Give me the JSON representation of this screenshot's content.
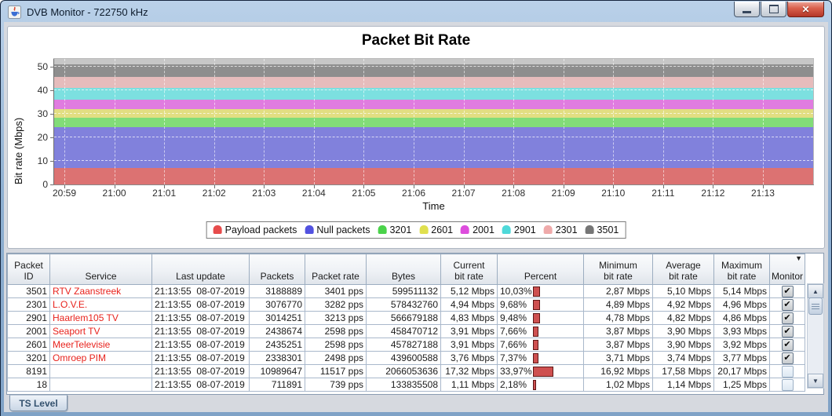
{
  "window": {
    "title": "DVB Monitor - 722750 kHz",
    "close_glyph": "✕"
  },
  "tabs": [
    {
      "label": "TS Level"
    }
  ],
  "scrollbar": {
    "up_glyph": "▲",
    "down_glyph": "▼"
  },
  "chart_data": {
    "type": "area",
    "stacked": true,
    "title": "Packet Bit Rate",
    "xlabel": "Time",
    "ylabel": "Bit rate (Mbps)",
    "x_ticks": [
      "20:59",
      "21:00",
      "21:01",
      "21:02",
      "21:03",
      "21:04",
      "21:05",
      "21:06",
      "21:07",
      "21:08",
      "21:09",
      "21:10",
      "21:11",
      "21:12",
      "21:13"
    ],
    "y_ticks": [
      0,
      10,
      20,
      30,
      40,
      50
    ],
    "ylim": [
      0,
      53.2
    ],
    "grid": true,
    "legend_position": "bottom",
    "plot_background": "#c7c7c7",
    "total_mbps": 50.84,
    "series": [
      {
        "name": "Payload packets",
        "value_mbps": 7.05,
        "area_color": "#dc7272",
        "legend_color": "#e74c4c"
      },
      {
        "name": "Null packets",
        "value_mbps": 17.32,
        "area_color": "#8181dc",
        "legend_color": "#5252e0"
      },
      {
        "name": "3201",
        "value_mbps": 3.76,
        "area_color": "#82dc78",
        "legend_color": "#4ad34a"
      },
      {
        "name": "2601",
        "value_mbps": 3.91,
        "area_color": "#e2de82",
        "legend_color": "#e0e04e"
      },
      {
        "name": "2001",
        "value_mbps": 3.91,
        "area_color": "#e07ce0",
        "legend_color": "#dd4ddd"
      },
      {
        "name": "2901",
        "value_mbps": 4.83,
        "area_color": "#7ce0e0",
        "legend_color": "#4ed9d9"
      },
      {
        "name": "2301",
        "value_mbps": 4.94,
        "area_color": "#e6bcbc",
        "legend_color": "#efaaaa"
      },
      {
        "name": "3501",
        "value_mbps": 5.12,
        "area_color": "#8e8e8e",
        "legend_color": "#767676"
      }
    ]
  },
  "table": {
    "sort_icon": "▼",
    "check_glyph": "✔",
    "columns": [
      {
        "key": "packet_id",
        "label": "Packet\nID",
        "width": 54,
        "align": "right"
      },
      {
        "key": "service",
        "label": "Service",
        "width": 130,
        "align": "left"
      },
      {
        "key": "last_update",
        "label": "Last update",
        "width": 124,
        "align": "left"
      },
      {
        "key": "packets",
        "label": "Packets",
        "width": 71,
        "align": "right"
      },
      {
        "key": "packet_rate",
        "label": "Packet rate",
        "width": 78,
        "align": "right"
      },
      {
        "key": "bytes",
        "label": "Bytes",
        "width": 95,
        "align": "right"
      },
      {
        "key": "current",
        "label": "Current\nbit rate",
        "width": 72,
        "align": "right"
      },
      {
        "key": "percent",
        "label": "Percent",
        "width": 110,
        "align": "left"
      },
      {
        "key": "min",
        "label": "Minimum\nbit rate",
        "width": 88,
        "align": "right"
      },
      {
        "key": "avg",
        "label": "Average\nbit rate",
        "width": 78,
        "align": "right"
      },
      {
        "key": "max",
        "label": "Maximum\nbit rate",
        "width": 71,
        "align": "right"
      },
      {
        "key": "monitor",
        "label": "Monitor",
        "width": 45,
        "align": "center"
      }
    ],
    "rows": [
      {
        "packet_id": "3501",
        "service": "RTV Zaanstreek",
        "last_update": "21:13:55  08-07-2019",
        "packets": "3188889",
        "packet_rate": "3401 pps",
        "bytes": "599511132",
        "current": "5,12 Mbps",
        "percent": "10,03%",
        "percent_value": 10.03,
        "min": "2,87 Mbps",
        "avg": "5,10 Mbps",
        "max": "5,14 Mbps",
        "monitor": true
      },
      {
        "packet_id": "2301",
        "service": "L.O.V.E.",
        "last_update": "21:13:55  08-07-2019",
        "packets": "3076770",
        "packet_rate": "3282 pps",
        "bytes": "578432760",
        "current": "4,94 Mbps",
        "percent": "9,68%",
        "percent_value": 9.68,
        "min": "4,89 Mbps",
        "avg": "4,92 Mbps",
        "max": "4,96 Mbps",
        "monitor": true
      },
      {
        "packet_id": "2901",
        "service": "Haarlem105 TV",
        "last_update": "21:13:55  08-07-2019",
        "packets": "3014251",
        "packet_rate": "3213 pps",
        "bytes": "566679188",
        "current": "4,83 Mbps",
        "percent": "9,48%",
        "percent_value": 9.48,
        "min": "4,78 Mbps",
        "avg": "4,82 Mbps",
        "max": "4,86 Mbps",
        "monitor": true
      },
      {
        "packet_id": "2001",
        "service": "Seaport TV",
        "last_update": "21:13:55  08-07-2019",
        "packets": "2438674",
        "packet_rate": "2598 pps",
        "bytes": "458470712",
        "current": "3,91 Mbps",
        "percent": "7,66%",
        "percent_value": 7.66,
        "min": "3,87 Mbps",
        "avg": "3,90 Mbps",
        "max": "3,93 Mbps",
        "monitor": true
      },
      {
        "packet_id": "2601",
        "service": "MeerTelevisie",
        "last_update": "21:13:55  08-07-2019",
        "packets": "2435251",
        "packet_rate": "2598 pps",
        "bytes": "457827188",
        "current": "3,91 Mbps",
        "percent": "7,66%",
        "percent_value": 7.66,
        "min": "3,87 Mbps",
        "avg": "3,90 Mbps",
        "max": "3,92 Mbps",
        "monitor": true
      },
      {
        "packet_id": "3201",
        "service": "Omroep PIM",
        "last_update": "21:13:55  08-07-2019",
        "packets": "2338301",
        "packet_rate": "2498 pps",
        "bytes": "439600588",
        "current": "3,76 Mbps",
        "percent": "7,37%",
        "percent_value": 7.37,
        "min": "3,71 Mbps",
        "avg": "3,74 Mbps",
        "max": "3,77 Mbps",
        "monitor": true
      },
      {
        "packet_id": "8191",
        "service": "",
        "last_update": "21:13:55  08-07-2019",
        "packets": "10989647",
        "packet_rate": "11517 pps",
        "bytes": "2066053636",
        "current": "17,32 Mbps",
        "percent": "33,97%",
        "percent_value": 33.97,
        "min": "16,92 Mbps",
        "avg": "17,58 Mbps",
        "max": "20,17 Mbps",
        "monitor": false
      },
      {
        "packet_id": "18",
        "service": "",
        "last_update": "21:13:55  08-07-2019",
        "packets": "711891",
        "packet_rate": "739 pps",
        "bytes": "133835508",
        "current": "1,11 Mbps",
        "percent": "2,18%",
        "percent_value": 2.18,
        "min": "1,02 Mbps",
        "avg": "1,14 Mbps",
        "max": "1,25 Mbps",
        "monitor": false
      }
    ]
  }
}
